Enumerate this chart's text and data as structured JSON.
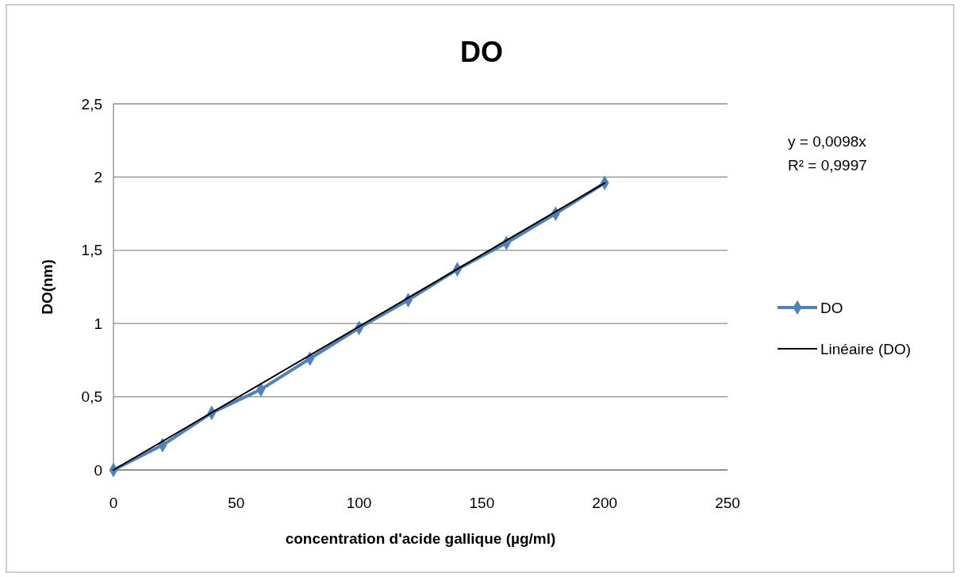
{
  "chart_data": {
    "type": "line",
    "title": "DO",
    "xlabel": "concentration d'acide gallique  (µg/ml)",
    "ylabel": "DO(nm)",
    "xlim": [
      0,
      250
    ],
    "xticks": [
      0,
      50,
      100,
      150,
      200,
      250
    ],
    "ylim": [
      0,
      2.5
    ],
    "yticks": [
      0,
      {
        "value": 0.5,
        "label": "0,5"
      },
      1,
      {
        "value": 1.5,
        "label": "1,5"
      },
      2,
      {
        "value": 2.5,
        "label": "2,5"
      }
    ],
    "grid": "y",
    "legend": "right",
    "annotations": [
      "y = 0,0098x",
      "R² = 0,9997"
    ],
    "series": [
      {
        "name": "DO",
        "color": "#4f81bd",
        "marker": "diamond",
        "x": [
          0,
          20,
          40,
          60,
          80,
          100,
          120,
          140,
          160,
          180,
          200
        ],
        "values": [
          0,
          0.17,
          0.39,
          0.55,
          0.76,
          0.97,
          1.16,
          1.37,
          1.55,
          1.75,
          1.96
        ]
      },
      {
        "name": "Linéaire (DO)",
        "color": "#000000",
        "marker": "none",
        "x": [
          0,
          200
        ],
        "values": [
          0,
          1.96
        ]
      }
    ]
  }
}
